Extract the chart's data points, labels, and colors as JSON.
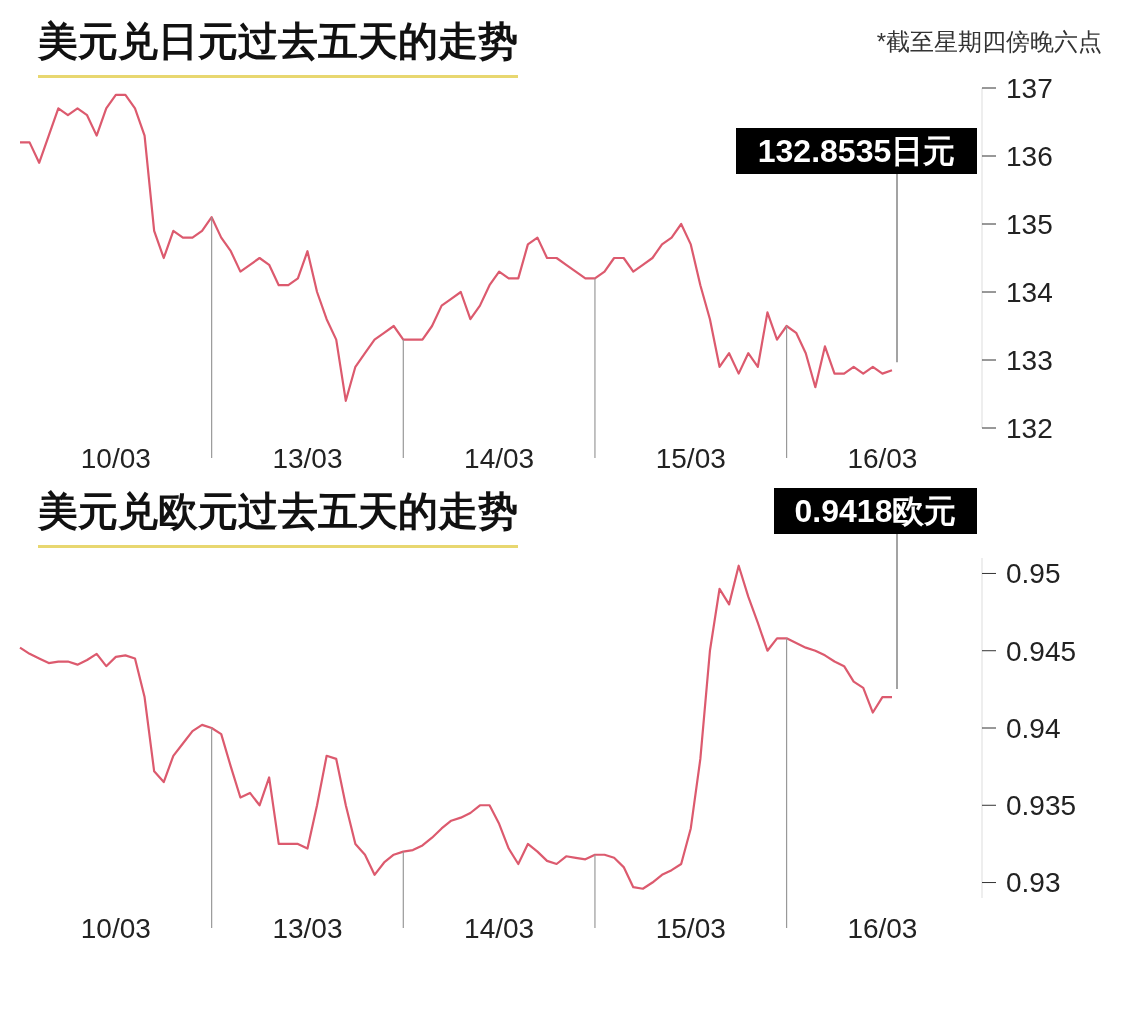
{
  "chart_data": [
    {
      "type": "line",
      "title": "美元兑日元过去五天的走势",
      "annotations": [
        "*截至星期四傍晚六点",
        "132.8535日元"
      ],
      "categories": [
        null,
        null,
        null,
        null,
        null,
        null,
        null,
        null,
        null,
        null,
        "10/03",
        null,
        null,
        null,
        null,
        null,
        null,
        null,
        null,
        null,
        null,
        null,
        null,
        null,
        null,
        null,
        null,
        null,
        null,
        null,
        "13/03",
        null,
        null,
        null,
        null,
        null,
        null,
        null,
        null,
        null,
        null,
        null,
        null,
        null,
        null,
        null,
        null,
        null,
        null,
        null,
        "14/03",
        null,
        null,
        null,
        null,
        null,
        null,
        null,
        null,
        null,
        null,
        null,
        null,
        null,
        null,
        null,
        null,
        null,
        null,
        null,
        "15/03",
        null,
        null,
        null,
        null,
        null,
        null,
        null,
        null,
        null,
        null,
        null,
        null,
        null,
        null,
        null,
        null,
        null,
        null,
        null,
        "16/03",
        null
      ],
      "ylim": [
        132,
        137
      ],
      "yticks": [
        132,
        133,
        134,
        135,
        136,
        137
      ],
      "marker": "none",
      "line_style": "solid",
      "series": [
        {
          "color": "#dc5a6e",
          "values": [
            136.2,
            136.2,
            135.9,
            136.3,
            136.7,
            136.6,
            136.7,
            136.6,
            136.3,
            136.7,
            136.9,
            136.9,
            136.7,
            136.3,
            134.9,
            134.5,
            134.9,
            134.8,
            134.8,
            134.9,
            135.1,
            134.8,
            134.6,
            134.3,
            134.4,
            134.5,
            134.4,
            134.1,
            134.1,
            134.2,
            134.6,
            134.0,
            133.6,
            133.3,
            132.4,
            132.9,
            133.1,
            133.3,
            133.4,
            133.5,
            133.3,
            133.3,
            133.3,
            133.5,
            133.8,
            133.9,
            134.0,
            133.6,
            133.8,
            134.1,
            134.3,
            134.2,
            134.2,
            134.7,
            134.8,
            134.5,
            134.5,
            134.4,
            134.3,
            134.2,
            134.2,
            134.3,
            134.5,
            134.5,
            134.3,
            134.4,
            134.5,
            134.7,
            134.8,
            135.0,
            134.7,
            134.1,
            133.6,
            132.9,
            133.1,
            132.8,
            133.1,
            132.9,
            133.7,
            133.3,
            133.5,
            133.4,
            133.1,
            132.6,
            133.2,
            132.8,
            132.8,
            132.9,
            132.8,
            132.9,
            132.8,
            132.85
          ]
        }
      ]
    },
    {
      "type": "line",
      "title": "美元兑欧元过去五天的走势",
      "annotations": [
        "0.9418欧元"
      ],
      "categories": [
        null,
        null,
        null,
        null,
        null,
        null,
        null,
        null,
        null,
        null,
        "10/03",
        null,
        null,
        null,
        null,
        null,
        null,
        null,
        null,
        null,
        null,
        null,
        null,
        null,
        null,
        null,
        null,
        null,
        null,
        null,
        "13/03",
        null,
        null,
        null,
        null,
        null,
        null,
        null,
        null,
        null,
        null,
        null,
        null,
        null,
        null,
        null,
        null,
        null,
        null,
        null,
        "14/03",
        null,
        null,
        null,
        null,
        null,
        null,
        null,
        null,
        null,
        null,
        null,
        null,
        null,
        null,
        null,
        null,
        null,
        null,
        null,
        "15/03",
        null,
        null,
        null,
        null,
        null,
        null,
        null,
        null,
        null,
        null,
        null,
        null,
        null,
        null,
        null,
        null,
        null,
        null,
        null,
        "16/03",
        null
      ],
      "ylim": [
        0.929,
        0.951
      ],
      "yticks": [
        0.93,
        0.935,
        0.94,
        0.945,
        0.95
      ],
      "marker": "none",
      "line_style": "solid",
      "series": [
        {
          "color": "#dc5a6e",
          "values": [
            0.9452,
            0.9448,
            0.9445,
            0.9442,
            0.9443,
            0.9443,
            0.9441,
            0.9444,
            0.9448,
            0.944,
            0.9446,
            0.9447,
            0.9445,
            0.942,
            0.9372,
            0.9365,
            0.9382,
            0.939,
            0.9398,
            0.9402,
            0.94,
            0.9396,
            0.9375,
            0.9355,
            0.9358,
            0.935,
            0.9368,
            0.9325,
            0.9325,
            0.9325,
            0.9322,
            0.935,
            0.9382,
            0.938,
            0.935,
            0.9325,
            0.9318,
            0.9305,
            0.9313,
            0.9318,
            0.932,
            0.9321,
            0.9324,
            0.9329,
            0.9335,
            0.934,
            0.9342,
            0.9345,
            0.935,
            0.935,
            0.9338,
            0.9322,
            0.9312,
            0.9325,
            0.932,
            0.9314,
            0.9312,
            0.9317,
            0.9316,
            0.9315,
            0.9318,
            0.9318,
            0.9316,
            0.931,
            0.9297,
            0.9296,
            0.93,
            0.9305,
            0.9308,
            0.9312,
            0.9335,
            0.938,
            0.945,
            0.949,
            0.948,
            0.9505,
            0.9485,
            0.9468,
            0.945,
            0.9458,
            0.9458,
            0.9455,
            0.9452,
            0.945,
            0.9447,
            0.9443,
            0.944,
            0.943,
            0.9426,
            0.941,
            0.942,
            0.942
          ]
        }
      ]
    }
  ]
}
